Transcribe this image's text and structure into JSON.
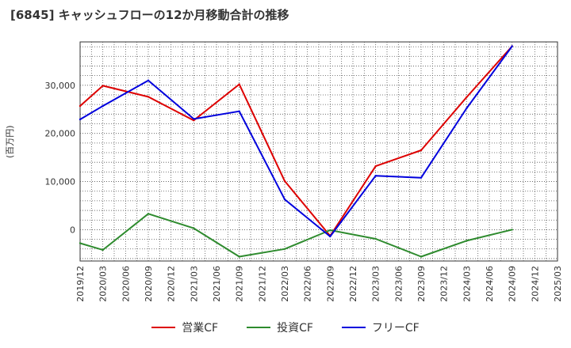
{
  "chart_data": {
    "type": "line",
    "title": "[6845]  キャッシュフローの12か月移動合計の推移",
    "ylabel": "(百万円)",
    "xlabel": "",
    "x": [
      "2019/12",
      "2020/03",
      "2020/06",
      "2020/09",
      "2020/12",
      "2021/03",
      "2021/06",
      "2021/09",
      "2021/12",
      "2022/03",
      "2022/06",
      "2022/09",
      "2022/12",
      "2023/03",
      "2023/06",
      "2023/09",
      "2023/12",
      "2024/03",
      "2024/06",
      "2024/09",
      "2024/12",
      "2025/03"
    ],
    "ylim": [
      -6500,
      39000
    ],
    "yticks": [
      0,
      10000,
      20000,
      30000
    ],
    "ytick_labels": [
      "0",
      "10,000",
      "20,000",
      "30,000"
    ],
    "grid": true,
    "legend_position": "bottom",
    "series": [
      {
        "name": "営業CF",
        "color": "#dd0000",
        "values": [
          25700,
          29900,
          null,
          27600,
          null,
          22700,
          null,
          30200,
          null,
          10100,
          null,
          -1300,
          null,
          13200,
          null,
          16500,
          null,
          27500,
          null,
          38100,
          null,
          null
        ]
      },
      {
        "name": "投資CF",
        "color": "#2e8b2e",
        "values": [
          -2800,
          -4200,
          null,
          3300,
          null,
          300,
          null,
          -5600,
          null,
          -4000,
          null,
          -100,
          null,
          -1900,
          null,
          -5600,
          null,
          -2300,
          null,
          0,
          null,
          null
        ]
      },
      {
        "name": "フリーCF",
        "color": "#0000dd",
        "values": [
          22900,
          25700,
          null,
          31000,
          null,
          23000,
          null,
          24600,
          null,
          6300,
          null,
          -1400,
          null,
          11200,
          null,
          10800,
          null,
          25200,
          null,
          38100,
          null,
          null
        ]
      }
    ]
  }
}
